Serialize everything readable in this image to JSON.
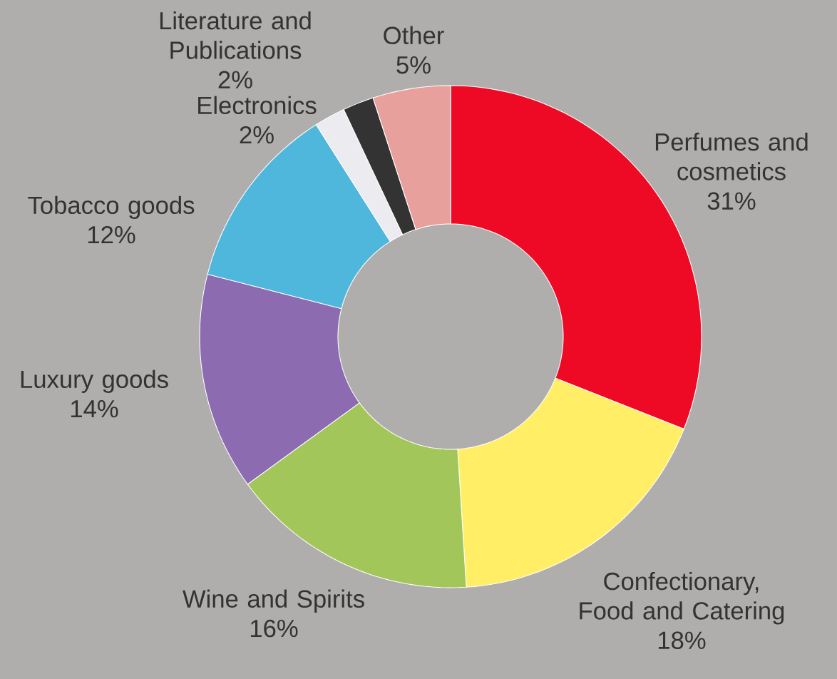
{
  "chart_data": {
    "type": "donut",
    "categories": [
      "Perfumes and cosmetics",
      "Confectionary, Food and Catering",
      "Wine and Spirits",
      "Luxury goods",
      "Tobacco goods",
      "Electronics",
      "Literature and Publications",
      "Other"
    ],
    "values": [
      31,
      18,
      16,
      14,
      12,
      2,
      2,
      5
    ],
    "value_labels": [
      "31%",
      "18%",
      "16%",
      "14%",
      "12%",
      "2%",
      "2%",
      "5%"
    ],
    "colors": [
      "#ee0a24",
      "#ffee66",
      "#a3c65a",
      "#8c6bb1",
      "#4fb7dc",
      "#ebebf0",
      "#333333",
      "#e8a09c"
    ]
  }
}
